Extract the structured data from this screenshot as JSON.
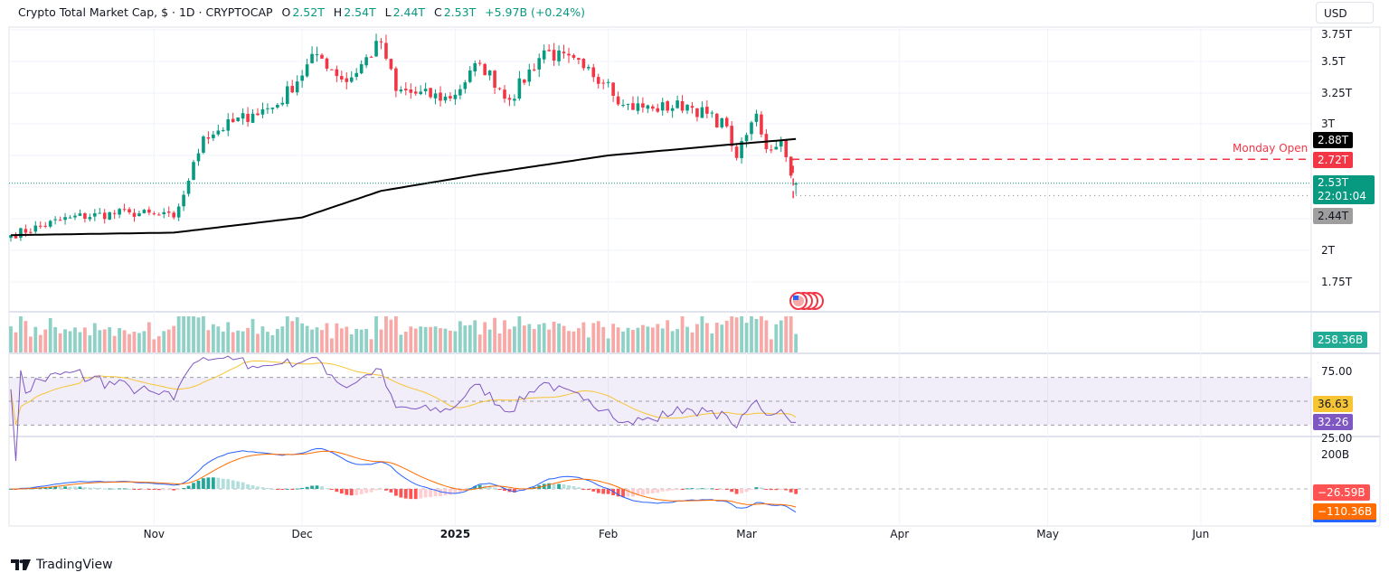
{
  "header": {
    "title": "Crypto Total Market Cap, $ · 1D · CRYPTOCAP",
    "open_label": "O",
    "open": "2.52T",
    "high_label": "H",
    "high": "2.54T",
    "low_label": "L",
    "low": "2.44T",
    "close_label": "C",
    "close": "2.53T",
    "change": "+5.97B (+0.24%)"
  },
  "currency_button": "USD",
  "price_axis": [
    "3.75T",
    "3.5T",
    "3.25T",
    "3T",
    "2T",
    "1.75T"
  ],
  "badges": {
    "ma": "2.88T",
    "monday_open": "2.72T",
    "last_price": "2.53T",
    "countdown": "22:01:04",
    "low": "2.44T",
    "volume": "258.36B",
    "rsi_ma": "36.63",
    "rsi": "32.26",
    "macd_hist": "−26.59B",
    "macd_signal": "−110.36B"
  },
  "annotations": {
    "monday_open_label": "Monday Open"
  },
  "rsi_axis": [
    "75.00",
    "25.00"
  ],
  "macd_axis": [
    "200B"
  ],
  "time_axis": [
    {
      "label": "Nov",
      "date": "2024-11-01"
    },
    {
      "label": "Dec",
      "date": "2024-12-01"
    },
    {
      "label": "2025",
      "date": "2025-01-01",
      "bold": true
    },
    {
      "label": "Feb",
      "date": "2025-02-01"
    },
    {
      "label": "Mar",
      "date": "2025-03-01"
    },
    {
      "label": "Apr",
      "date": "2025-04-01"
    },
    {
      "label": "May",
      "date": "2025-05-01"
    },
    {
      "label": "Jun",
      "date": "2025-06-01"
    }
  ],
  "branding": "TradingView",
  "colors": {
    "up": "#089981",
    "down": "#f23645",
    "ma": "#000000",
    "rsi": "#7e57c2",
    "rsi_ma": "#f7c433",
    "macd": "#2962ff",
    "signal": "#ff6d00",
    "rsi_band": "#7e57c2"
  },
  "chart_data": {
    "type": "candlestick",
    "symbol": "CRYPTOCAP",
    "interval": "1D",
    "unit": "USD trillions",
    "ylim": [
      1.7,
      3.78
    ],
    "approx_closes": [
      [
        "2024-10-03",
        2.12
      ],
      [
        "2024-10-15",
        2.26
      ],
      [
        "2024-10-27",
        2.3
      ],
      [
        "2024-11-05",
        2.26
      ],
      [
        "2024-11-08",
        2.55
      ],
      [
        "2024-11-11",
        2.9
      ],
      [
        "2024-11-21",
        3.08
      ],
      [
        "2024-11-26",
        3.15
      ],
      [
        "2024-12-04",
        3.55
      ],
      [
        "2024-12-10",
        3.33
      ],
      [
        "2024-12-17",
        3.65
      ],
      [
        "2024-12-20",
        3.26
      ],
      [
        "2024-12-31",
        3.2
      ],
      [
        "2025-01-06",
        3.48
      ],
      [
        "2025-01-12",
        3.19
      ],
      [
        "2025-01-19",
        3.58
      ],
      [
        "2025-01-27",
        3.44
      ],
      [
        "2025-02-01",
        3.33
      ],
      [
        "2025-02-04",
        3.15
      ],
      [
        "2025-02-10",
        3.12
      ],
      [
        "2025-02-17",
        3.15
      ],
      [
        "2025-02-25",
        2.98
      ],
      [
        "2025-02-27",
        2.73
      ],
      [
        "2025-03-03",
        3.08
      ],
      [
        "2025-03-05",
        2.8
      ],
      [
        "2025-03-08",
        2.87
      ],
      [
        "2025-03-10",
        2.59
      ],
      [
        "2025-03-11",
        2.53
      ]
    ],
    "moving_average": [
      [
        "2024-10-03",
        2.12
      ],
      [
        "2024-11-05",
        2.14
      ],
      [
        "2024-12-01",
        2.26
      ],
      [
        "2024-12-17",
        2.47
      ],
      [
        "2025-01-06",
        2.6
      ],
      [
        "2025-02-01",
        2.75
      ],
      [
        "2025-02-24",
        2.83
      ],
      [
        "2025-03-11",
        2.88
      ]
    ],
    "monday_open": 2.72,
    "last": {
      "open": 2.52,
      "high": 2.54,
      "low": 2.44,
      "close": 2.53
    },
    "indicators": {
      "volume_last_B": 258.36,
      "rsi": 32.26,
      "rsi_ma": 36.63,
      "rsi_levels": [
        70,
        50,
        30
      ],
      "macd_hist_B": -26.59,
      "macd_signal_B": -110.36
    }
  }
}
